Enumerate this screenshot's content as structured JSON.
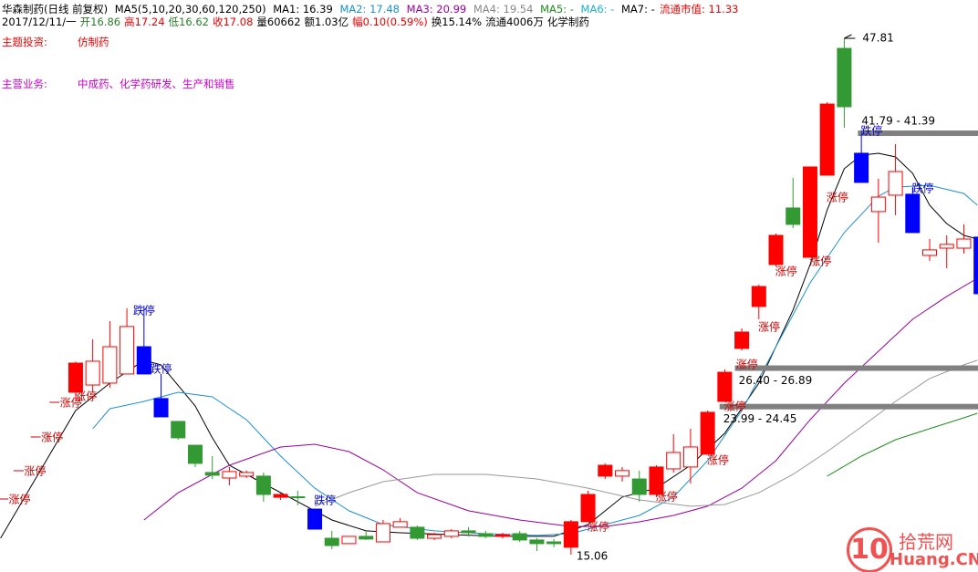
{
  "header": {
    "line1": [
      "华森制药(日线 前复权)",
      "MA5(5,10,20,30,60,120,250)",
      "MA1: 16.39",
      "MA2: 17.48",
      "MA3: 20.99",
      "MA4: 19.54",
      "MA5: -",
      "MA6: -",
      "MA7: -"
    ],
    "market_cap": "流通市值: 11.33",
    "line2": [
      "2017/12/11/一",
      "开16.86",
      "高17.24",
      "低16.62",
      "收17.08",
      "量60662",
      "额1.03亿",
      "幅0.10(0.59%)",
      "换15.14%",
      "流通4006万",
      "化学制药"
    ],
    "theme_label": "主题投资:",
    "theme": "仿制药",
    "business_label": "主营业务:",
    "business": "中成药、化学药研发、生产和销售"
  },
  "watermark": {
    "logo": "10",
    "name": "拾荒网",
    "domain": "Huang.CN"
  },
  "chart_data": {
    "type": "candlestick",
    "xlim": [
      -4.43,
      52.83
    ],
    "ylim": [
      13.96,
      50.24
    ],
    "candles": {
      "x": [
        0,
        1,
        2,
        3,
        4,
        5,
        6,
        7,
        8,
        9,
        10,
        11,
        12,
        13,
        14,
        15,
        16,
        17,
        18,
        19,
        20,
        21,
        22,
        23,
        24,
        25,
        26,
        27,
        28,
        29,
        30,
        31,
        32,
        33,
        34,
        35,
        36,
        37,
        38,
        39,
        40,
        41,
        42,
        43,
        44,
        45,
        46,
        47,
        48,
        49,
        50,
        51,
        52,
        53
      ],
      "open": [
        25.36,
        25.82,
        25.94,
        26.52,
        28.25,
        24.96,
        23.51,
        22.0,
        20.27,
        19.92,
        20.04,
        20.04,
        18.7,
        18.73,
        17.95,
        16.1,
        15.76,
        16.22,
        15.87,
        16.8,
        16.8,
        16.1,
        16.22,
        16.57,
        16.39,
        16.22,
        16.39,
        15.99,
        15.87,
        15.53,
        17.15,
        20.04,
        20.04,
        19.86,
        18.88,
        20.5,
        20.62,
        21.43,
        24.78,
        28.14,
        30.8,
        33.46,
        37.05,
        33.92,
        39.13,
        47.17,
        40.52,
        36.82,
        37.86,
        37.92,
        34.04,
        34.5,
        34.5,
        35.2
      ],
      "high": [
        27.3,
        28.72,
        29.87,
        30.68,
        30.86,
        26.52,
        23.51,
        22.0,
        21.31,
        20.62,
        20.39,
        20.27,
        18.99,
        19.11,
        17.95,
        16.57,
        16.22,
        16.57,
        17.26,
        17.38,
        16.91,
        16.45,
        16.68,
        16.8,
        16.57,
        16.45,
        16.57,
        16.1,
        16.05,
        17.26,
        19.11,
        20.85,
        20.62,
        20.39,
        20.73,
        22.7,
        23.05,
        24.2,
        26.81,
        29.41,
        32.19,
        35.43,
        38.96,
        39.65,
        43.76,
        47.81,
        41.68,
        38.9,
        41.1,
        38.38,
        35.08,
        35.31,
        36.01,
        35.2
      ],
      "low": [
        25.0,
        25.36,
        25.65,
        26.81,
        26.52,
        23.8,
        22.35,
        20.62,
        19.86,
        19.46,
        19.92,
        18.42,
        18.53,
        18.19,
        16.68,
        15.41,
        15.76,
        15.99,
        15.87,
        16.8,
        15.99,
        15.99,
        16.1,
        16.22,
        16.1,
        16.1,
        15.87,
        15.29,
        15.53,
        15.06,
        17.15,
        19.86,
        19.69,
        18.42,
        18.71,
        20.27,
        19.57,
        21.43,
        24.78,
        28.02,
        29.99,
        33.35,
        35.77,
        33.92,
        39.13,
        42.14,
        38.67,
        34.85,
        36.59,
        35.49,
        33.69,
        33.23,
        34.16,
        31.61
      ],
      "close": [
        27.21,
        27.33,
        28.25,
        29.53,
        26.52,
        23.8,
        22.47,
        20.85,
        20.1,
        20.33,
        20.27,
        18.88,
        18.88,
        18.7,
        16.68,
        15.64,
        16.22,
        16.05,
        17.03,
        17.15,
        16.1,
        16.33,
        16.57,
        16.45,
        16.22,
        16.33,
        15.99,
        15.76,
        15.76,
        17.15,
        18.88,
        20.73,
        20.39,
        18.88,
        20.62,
        21.54,
        21.89,
        24.09,
        26.63,
        29.18,
        32.07,
        35.31,
        36.01,
        39.65,
        43.64,
        43.47,
        38.67,
        37.74,
        39.36,
        35.49,
        34.39,
        34.74,
        35.08,
        31.61
      ],
      "colors": [
        "#ff0000",
        "#ff0000",
        "#ff0000",
        "#ff0000",
        "#0000ff",
        "#0000ff",
        "#339933",
        "#339933",
        "#339933",
        "#ff0000",
        "#ff0000",
        "#339933",
        "#ff0000",
        "#339933",
        "#0000ff",
        "#339933",
        "#ff0000",
        "#339933",
        "#ff0000",
        "#ff0000",
        "#339933",
        "#ff0000",
        "#ff0000",
        "#339933",
        "#339933",
        "#ff0000",
        "#339933",
        "#339933",
        "#339933",
        "#ff0000",
        "#ff0000",
        "#ff0000",
        "#ff0000",
        "#339933",
        "#ff0000",
        "#ff0000",
        "#ff0000",
        "#ff0000",
        "#ff0000",
        "#ff0000",
        "#ff0000",
        "#ff0000",
        "#339933",
        "#ff0000",
        "#ff0000",
        "#339933",
        "#0000ff",
        "#ff0000",
        "#ff0000",
        "#0000ff",
        "#ff0000",
        "#ff0000",
        "#ff0000",
        "#0000ff"
      ],
      "fills": [
        "#ff0000",
        "#ffffff",
        "#ffffff",
        "#ffffff",
        "#0000ff",
        "#0000ff",
        "#339933",
        "#339933",
        "#339933",
        "#ffffff",
        "#ffffff",
        "#339933",
        "#ff0000",
        "#339933",
        "#0000ff",
        "#339933",
        "#ffffff",
        "#339933",
        "#ffffff",
        "#ffffff",
        "#339933",
        "#ffffff",
        "#ffffff",
        "#339933",
        "#339933",
        "#ff0000",
        "#339933",
        "#339933",
        "#339933",
        "#ff0000",
        "#ff0000",
        "#ff0000",
        "#ffffff",
        "#339933",
        "#ff0000",
        "#ffffff",
        "#ffffff",
        "#ff0000",
        "#ff0000",
        "#ff0000",
        "#ff0000",
        "#ff0000",
        "#339933",
        "#ff0000",
        "#ff0000",
        "#339933",
        "#0000ff",
        "#ffffff",
        "#ffffff",
        "#0000ff",
        "#ffffff",
        "#ffffff",
        "#ffffff",
        "#0000ff"
      ]
    },
    "series": [
      {
        "color": "#000000",
        "x": [
          -4.4,
          0,
          2,
          4,
          5,
          7,
          8,
          9,
          11,
          13,
          15,
          17,
          19,
          22,
          25,
          28,
          30,
          32,
          34,
          36,
          38,
          40,
          42,
          43,
          44,
          45,
          46,
          47,
          48,
          49,
          50,
          51,
          52,
          52.8
        ],
        "values": [
          16.1,
          24.2,
          25.94,
          27.39,
          27.1,
          24.49,
          22.47,
          20.73,
          19.57,
          18.42,
          17.26,
          16.57,
          16.45,
          16.33,
          16.22,
          16.22,
          16.97,
          18.71,
          19.28,
          20.73,
          22.76,
          25.94,
          30.57,
          33.46,
          36.93,
          39.54,
          40.4,
          40.52,
          40.29,
          39.25,
          37.22,
          36.06,
          35.31,
          35.08
        ]
      },
      {
        "color": "#1e90d0",
        "x": [
          1,
          2,
          4,
          6,
          8,
          10,
          12,
          14,
          16,
          18,
          21,
          24,
          27,
          29,
          31,
          33,
          35,
          37,
          39,
          41,
          43,
          45,
          47,
          48,
          50,
          52,
          52.8
        ],
        "values": [
          23.05,
          24.32,
          24.78,
          25.36,
          25.07,
          23.62,
          21.31,
          19.28,
          17.84,
          16.97,
          16.57,
          16.39,
          16.28,
          16.39,
          16.97,
          17.55,
          18.71,
          21.02,
          24.2,
          28.25,
          32.3,
          35.49,
          37.8,
          38.38,
          38.49,
          37.97,
          37.22
        ]
      },
      {
        "color": "#990099",
        "x": [
          4,
          6,
          9,
          12,
          14,
          16,
          18,
          20,
          23,
          26,
          29,
          31,
          33,
          35,
          37,
          39,
          41,
          43,
          45,
          47,
          49,
          51,
          52.8
        ],
        "values": [
          17.26,
          18.99,
          20.73,
          21.89,
          22.06,
          21.6,
          20.44,
          18.99,
          17.84,
          17.26,
          16.85,
          16.85,
          17.14,
          17.55,
          18.13,
          19.28,
          21.02,
          23.62,
          25.94,
          27.96,
          29.99,
          31.44,
          32.59
        ]
      },
      {
        "color": "#999999",
        "x": [
          14,
          16,
          18,
          21,
          24,
          27,
          30,
          33,
          36,
          38,
          40,
          42,
          44,
          46,
          48,
          50,
          52,
          52.8
        ],
        "values": [
          18.13,
          18.99,
          19.69,
          20.15,
          20.15,
          19.86,
          19.28,
          18.53,
          18.13,
          18.24,
          18.99,
          20.15,
          21.6,
          23.16,
          24.78,
          26.23,
          27.1,
          27.39
        ]
      },
      {
        "color": "#228b22",
        "x": [
          44,
          46,
          48,
          50,
          52,
          52.8
        ],
        "values": [
          20.04,
          21.31,
          22.35,
          23.05,
          23.74,
          24.03
        ]
      }
    ],
    "labels": [
      {
        "text": "跌停",
        "x": 4,
        "y": 30.51,
        "color": "#0000cc"
      },
      {
        "text": "跌停",
        "x": 5,
        "y": 26.81,
        "color": "#0000cc"
      },
      {
        "text": "涨停",
        "x": 0.6,
        "y": 25.07,
        "color": "#cc0000"
      },
      {
        "text": "一涨停",
        "x": -0.6,
        "y": 24.67,
        "color": "#cc0000"
      },
      {
        "text": "一涨停",
        "x": -1.7,
        "y": 22.47,
        "color": "#cc0000"
      },
      {
        "text": "一涨停",
        "x": -2.7,
        "y": 20.33,
        "color": "#cc0000"
      },
      {
        "text": "一涨停",
        "x": -3.6,
        "y": 18.53,
        "color": "#cc0000"
      },
      {
        "text": "跌停",
        "x": 14.6,
        "y": 18.47,
        "color": "#0000cc"
      },
      {
        "text": "涨停",
        "x": 30.6,
        "y": 16.8,
        "color": "#cc0000"
      },
      {
        "text": "涨停",
        "x": 34.6,
        "y": 18.71,
        "color": "#cc0000"
      },
      {
        "text": "涨停",
        "x": 37.6,
        "y": 21.02,
        "color": "#cc0000"
      },
      {
        "text": "涨停",
        "x": 38.6,
        "y": 24.43,
        "color": "#cc0000"
      },
      {
        "text": "涨停",
        "x": 39.3,
        "y": 27.1,
        "color": "#cc0000"
      },
      {
        "text": "涨停",
        "x": 40.6,
        "y": 29.47,
        "color": "#cc0000"
      },
      {
        "text": "涨停",
        "x": 41.6,
        "y": 33.0,
        "color": "#cc0000"
      },
      {
        "text": "涨停",
        "x": 43.6,
        "y": 33.63,
        "color": "#cc0000"
      },
      {
        "text": "涨停",
        "x": 44.6,
        "y": 37.68,
        "color": "#cc0000"
      },
      {
        "text": "跌停",
        "x": 46.6,
        "y": 41.91,
        "color": "#0000cc"
      },
      {
        "text": "跌停",
        "x": 49.6,
        "y": 38.26,
        "color": "#0000cc"
      }
    ],
    "levels": [
      {
        "label": "41.79 - 41.39",
        "value": 41.79,
        "x": 45.8,
        "position": "above"
      },
      {
        "label": "26.40 - 26.89",
        "value": 26.89,
        "x": 38.6,
        "position": "below"
      },
      {
        "label": "23.99 - 24.45",
        "value": 24.45,
        "x": 37.7,
        "position": "below"
      }
    ],
    "high_label": {
      "text": "47.81",
      "x": 45,
      "value": 47.81
    },
    "low_label": {
      "text": "15.06",
      "x": 29,
      "value": 15.06
    }
  }
}
